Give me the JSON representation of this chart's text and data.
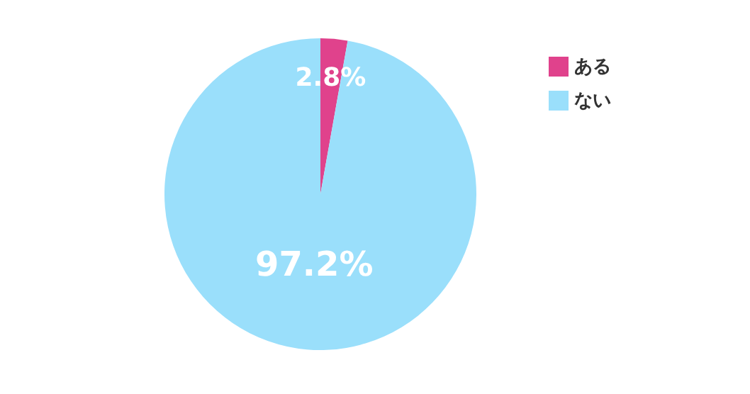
{
  "chart_data": {
    "type": "pie",
    "categories": [
      "ある",
      "ない"
    ],
    "values": [
      2.8,
      97.2
    ],
    "colors": [
      "#e0428c",
      "#9adffb"
    ],
    "value_labels": [
      "2.8%",
      "97.2%"
    ],
    "legend": "top right"
  }
}
